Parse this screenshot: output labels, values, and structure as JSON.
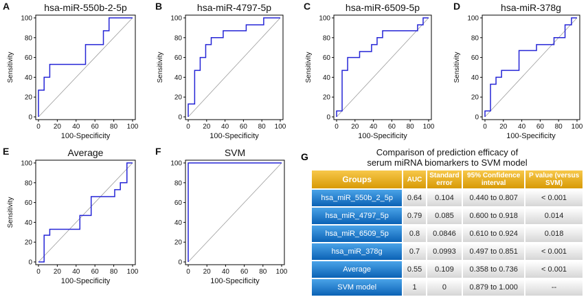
{
  "chart_data": [
    {
      "panel": "A",
      "type": "line",
      "title": "hsa-miR-550b-2-5p",
      "xlabel": "100-Specificity",
      "ylabel": "Sensitivity",
      "xlim": [
        0,
        100
      ],
      "ylim": [
        0,
        100
      ],
      "ticks": [
        0,
        20,
        40,
        60,
        80,
        100
      ],
      "roc": [
        [
          0,
          0
        ],
        [
          0,
          27
        ],
        [
          6,
          27
        ],
        [
          6,
          40
        ],
        [
          12,
          40
        ],
        [
          12,
          53
        ],
        [
          50,
          53
        ],
        [
          50,
          73
        ],
        [
          69,
          73
        ],
        [
          69,
          87
        ],
        [
          75,
          87
        ],
        [
          75,
          100
        ],
        [
          100,
          100
        ]
      ]
    },
    {
      "panel": "B",
      "type": "line",
      "title": "hsa-miR-4797-5p",
      "xlabel": "100-Specificity",
      "ylabel": "Sensitivity",
      "xlim": [
        0,
        100
      ],
      "ylim": [
        0,
        100
      ],
      "ticks": [
        0,
        20,
        40,
        60,
        80,
        100
      ],
      "roc": [
        [
          0,
          0
        ],
        [
          0,
          13
        ],
        [
          7,
          13
        ],
        [
          7,
          47
        ],
        [
          13,
          47
        ],
        [
          13,
          60
        ],
        [
          19,
          60
        ],
        [
          19,
          73
        ],
        [
          25,
          73
        ],
        [
          25,
          80
        ],
        [
          38,
          80
        ],
        [
          38,
          87
        ],
        [
          63,
          87
        ],
        [
          63,
          93
        ],
        [
          82,
          93
        ],
        [
          82,
          100
        ],
        [
          100,
          100
        ]
      ]
    },
    {
      "panel": "C",
      "type": "line",
      "title": "hsa-miR-6509-5p",
      "xlabel": "100-Specificity",
      "ylabel": "Sensitivity",
      "xlim": [
        0,
        100
      ],
      "ylim": [
        0,
        100
      ],
      "ticks": [
        0,
        20,
        40,
        60,
        80,
        100
      ],
      "roc": [
        [
          0,
          0
        ],
        [
          0,
          6
        ],
        [
          6,
          6
        ],
        [
          6,
          47
        ],
        [
          12,
          47
        ],
        [
          12,
          60
        ],
        [
          25,
          60
        ],
        [
          25,
          66
        ],
        [
          38,
          66
        ],
        [
          38,
          73
        ],
        [
          44,
          73
        ],
        [
          44,
          80
        ],
        [
          50,
          80
        ],
        [
          50,
          87
        ],
        [
          88,
          87
        ],
        [
          88,
          93
        ],
        [
          94,
          93
        ],
        [
          94,
          100
        ],
        [
          100,
          100
        ]
      ]
    },
    {
      "panel": "D",
      "type": "line",
      "title": "hsa-miR-378g",
      "xlabel": "100-Specificity",
      "ylabel": "Sensitivity",
      "xlim": [
        0,
        100
      ],
      "ylim": [
        0,
        100
      ],
      "ticks": [
        0,
        20,
        40,
        60,
        80,
        100
      ],
      "roc": [
        [
          0,
          0
        ],
        [
          0,
          6
        ],
        [
          6,
          6
        ],
        [
          6,
          33
        ],
        [
          12,
          33
        ],
        [
          12,
          40
        ],
        [
          18,
          40
        ],
        [
          18,
          47
        ],
        [
          37,
          47
        ],
        [
          37,
          67
        ],
        [
          56,
          67
        ],
        [
          56,
          73
        ],
        [
          75,
          73
        ],
        [
          75,
          80
        ],
        [
          87,
          80
        ],
        [
          87,
          93
        ],
        [
          94,
          93
        ],
        [
          94,
          100
        ],
        [
          100,
          100
        ]
      ]
    },
    {
      "panel": "E",
      "type": "line",
      "title": "Average",
      "xlabel": "100-Specificity",
      "ylabel": "Sensitivity",
      "xlim": [
        0,
        100
      ],
      "ylim": [
        0,
        100
      ],
      "ticks": [
        0,
        20,
        40,
        60,
        80,
        100
      ],
      "roc": [
        [
          0,
          0
        ],
        [
          6,
          0
        ],
        [
          6,
          27
        ],
        [
          12,
          27
        ],
        [
          12,
          33
        ],
        [
          44,
          33
        ],
        [
          44,
          47
        ],
        [
          56,
          47
        ],
        [
          56,
          66
        ],
        [
          81,
          66
        ],
        [
          81,
          73
        ],
        [
          87,
          73
        ],
        [
          87,
          80
        ],
        [
          94,
          80
        ],
        [
          94,
          100
        ],
        [
          100,
          100
        ]
      ]
    },
    {
      "panel": "F",
      "type": "line",
      "title": "SVM",
      "xlabel": "100-Specificity",
      "ylabel": "",
      "xlim": [
        0,
        100
      ],
      "ylim": [
        0,
        100
      ],
      "ticks": [
        0,
        20,
        40,
        60,
        80,
        100
      ],
      "roc": [
        [
          0,
          0
        ],
        [
          0,
          100
        ],
        [
          100,
          100
        ]
      ]
    },
    {
      "panel": "G",
      "type": "table",
      "title_line1": "Comparison of prediction efficacy of",
      "title_line2": "serum miRNA biomarkers to SVM model",
      "headers": [
        "Groups",
        "AUC",
        "Standard error",
        "95% Confidence interval",
        "P value (versus SVM)"
      ],
      "rows": [
        [
          "hsa_miR_550b_2_5p",
          "0.64",
          "0.104",
          "0.440 to 0.807",
          "< 0.001"
        ],
        [
          "hsa_miR_4797_5p",
          "0.79",
          "0.085",
          "0.600 to 0.918",
          "0.014"
        ],
        [
          "hsa_miR_6509_5p",
          "0.8",
          "0.0846",
          "0.610 to 0.924",
          "0.018"
        ],
        [
          "hsa_miR_378g",
          "0.7",
          "0.0993",
          "0.497 to 0.851",
          "< 0.001"
        ],
        [
          "Average",
          "0.55",
          "0.109",
          "0.358 to 0.736",
          "< 0.001"
        ],
        [
          "SVM model",
          "1",
          "0",
          "0.879 to 1.000",
          "--"
        ]
      ]
    }
  ],
  "colors": {
    "roc": "#2424d6",
    "diagonal": "#9a9a9a",
    "header": "#e8a816",
    "group_cell": "#1a73c8"
  }
}
